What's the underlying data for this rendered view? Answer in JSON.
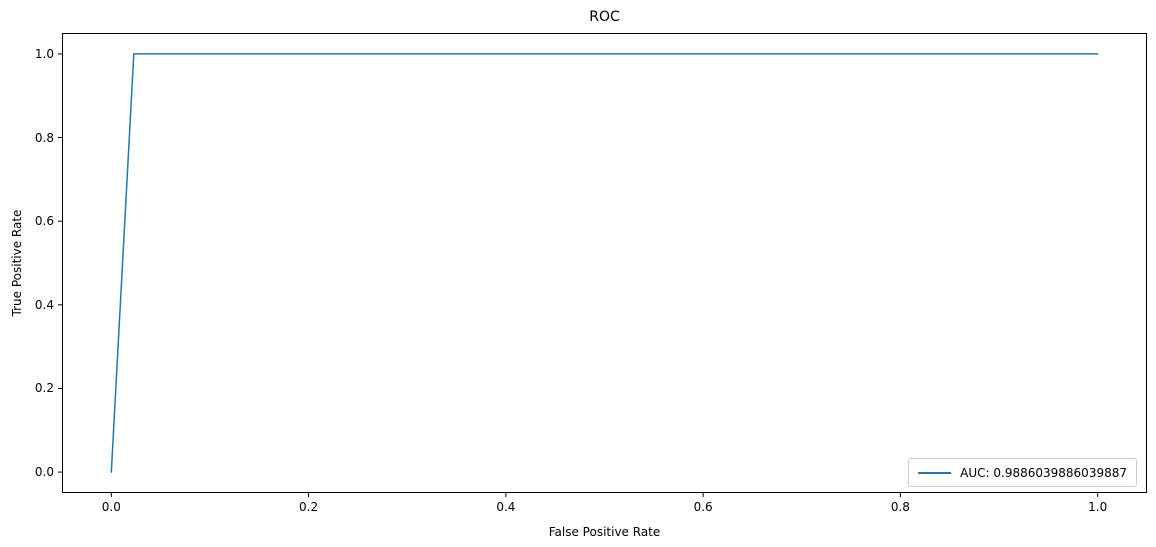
{
  "chart_data": {
    "type": "line",
    "title": "ROC",
    "xlabel": "False Positive Rate",
    "ylabel": "True Positive Rate",
    "xlim": [
      -0.05,
      1.05
    ],
    "ylim": [
      -0.05,
      1.05
    ],
    "xticks": [
      0.0,
      0.2,
      0.4,
      0.6,
      0.8,
      1.0
    ],
    "yticks": [
      0.0,
      0.2,
      0.4,
      0.6,
      0.8,
      1.0
    ],
    "grid": false,
    "axis_color": "#000000",
    "background_color": "#ffffff",
    "series": [
      {
        "name": "AUC: 0.9886039886039887",
        "color": "#1f77b4",
        "x": [
          0.0,
          0.0228,
          1.0
        ],
        "y": [
          0.0,
          1.0,
          1.0
        ]
      }
    ],
    "legend": {
      "position": "lower right",
      "entries": [
        {
          "label": "AUC: 0.9886039886039887",
          "color": "#1f77b4"
        }
      ]
    }
  }
}
